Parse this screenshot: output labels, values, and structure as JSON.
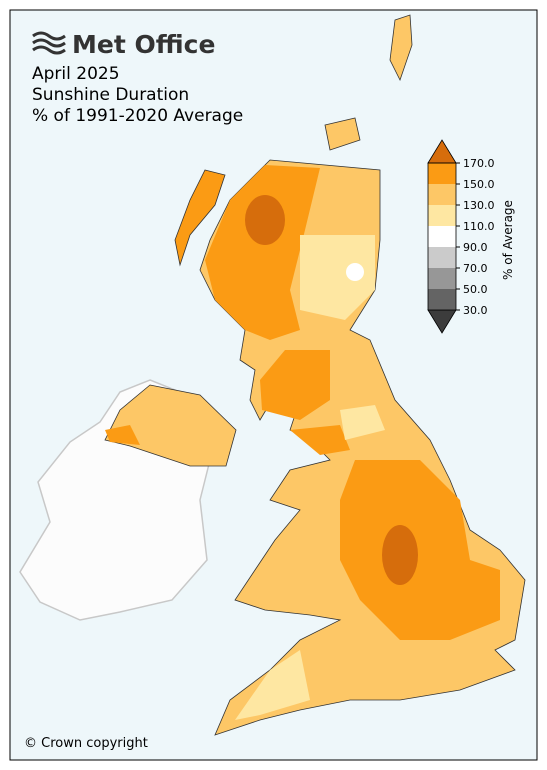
{
  "header": {
    "logo": "Met Office",
    "title_lines": [
      "April 2025",
      "Sunshine Duration",
      "% of 1991-2020 Average"
    ]
  },
  "legend": {
    "label": "% of Average",
    "ticks": [
      {
        "value": 30,
        "label": "30.0"
      },
      {
        "value": 50,
        "label": "50.0"
      },
      {
        "value": 70,
        "label": "70.0"
      },
      {
        "value": 90,
        "label": "90.0"
      },
      {
        "value": 110,
        "label": "110.0"
      },
      {
        "value": 130,
        "label": "130.0"
      },
      {
        "value": 150,
        "label": "150.0"
      },
      {
        "value": 170,
        "label": "170.0"
      }
    ],
    "colors": [
      "#3c3c3c",
      "#646464",
      "#979797",
      "#cbcbcb",
      "#ffffff",
      "#fee7a2",
      "#fdc766",
      "#fb9b14",
      "#d66d0c"
    ]
  },
  "footer": "© Crown copyright"
}
